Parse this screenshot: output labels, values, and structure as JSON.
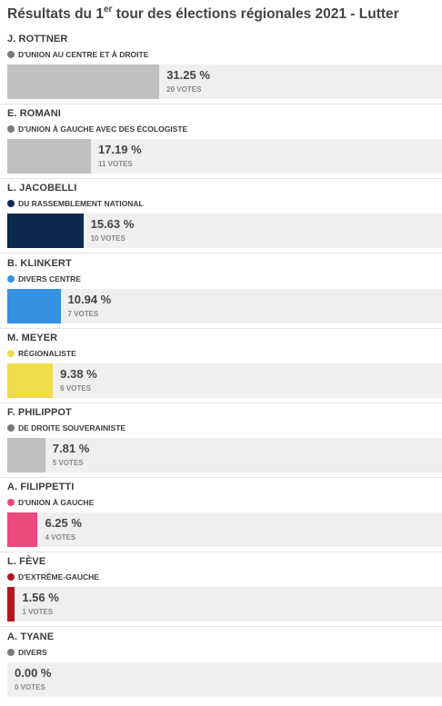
{
  "title_prefix": "Résultats du 1",
  "title_sup": "er",
  "title_suffix": " tour des élections régionales 2021 - Lutter",
  "votes_suffix": " VOTES",
  "chart_data": {
    "type": "bar",
    "orientation": "horizontal",
    "title": "Résultats du 1er tour des élections régionales 2021 - Lutter",
    "xlim": [
      0,
      100
    ],
    "series": [
      {
        "values": [
          31.25,
          17.19,
          15.63,
          10.94,
          9.38,
          7.81,
          6.25,
          1.56,
          0.0
        ]
      }
    ],
    "categories": [
      "J. ROTTNER",
      "E. ROMANI",
      "L. JACOBELLI",
      "B. KLINKERT",
      "M. MEYER",
      "F. PHILIPPOT",
      "A. FILIPPETTI",
      "L. FÈVE",
      "A. TYANE"
    ]
  },
  "candidates": [
    {
      "name": "J. ROTTNER",
      "party": "D'UNION AU CENTRE ET À DROITE",
      "color": "#c0c0c0",
      "dot_color": "#7a7a7a",
      "percent": 31.25,
      "percent_label": "31.25 %",
      "votes": 20
    },
    {
      "name": "E. ROMANI",
      "party": "D'UNION À GAUCHE AVEC DES ÉCOLOGISTE",
      "color": "#c0c0c0",
      "dot_color": "#7a7a7a",
      "percent": 17.19,
      "percent_label": "17.19 %",
      "votes": 11
    },
    {
      "name": "L. JACOBELLI",
      "party": "DU RASSEMBLEMENT NATIONAL",
      "color": "#0c2a4e",
      "dot_color": "#0c2a4e",
      "percent": 15.63,
      "percent_label": "15.63 %",
      "votes": 10
    },
    {
      "name": "B. KLINKERT",
      "party": "DIVERS CENTRE",
      "color": "#3591e2",
      "dot_color": "#3591e2",
      "percent": 10.94,
      "percent_label": "10.94 %",
      "votes": 7
    },
    {
      "name": "M. MEYER",
      "party": "RÉGIONALISTE",
      "color": "#efdc4b",
      "dot_color": "#efdc4b",
      "percent": 9.38,
      "percent_label": "9.38 %",
      "votes": 6
    },
    {
      "name": "F. PHILIPPOT",
      "party": "DE DROITE SOUVERAINISTE",
      "color": "#c0c0c0",
      "dot_color": "#7a7a7a",
      "percent": 7.81,
      "percent_label": "7.81 %",
      "votes": 5
    },
    {
      "name": "A. FILIPPETTI",
      "party": "D'UNION À GAUCHE",
      "color": "#ec4a7c",
      "dot_color": "#ec4a7c",
      "percent": 6.25,
      "percent_label": "6.25 %",
      "votes": 4
    },
    {
      "name": "L. FÈVE",
      "party": "D'EXTRÊME-GAUCHE",
      "color": "#b5151d",
      "dot_color": "#b5151d",
      "percent": 1.56,
      "percent_label": "1.56 %",
      "votes": 1
    },
    {
      "name": "A. TYANE",
      "party": "DIVERS",
      "color": "#c0c0c0",
      "dot_color": "#7a7a7a",
      "percent": 0.0,
      "percent_label": "0.00 %",
      "votes": 0
    }
  ]
}
